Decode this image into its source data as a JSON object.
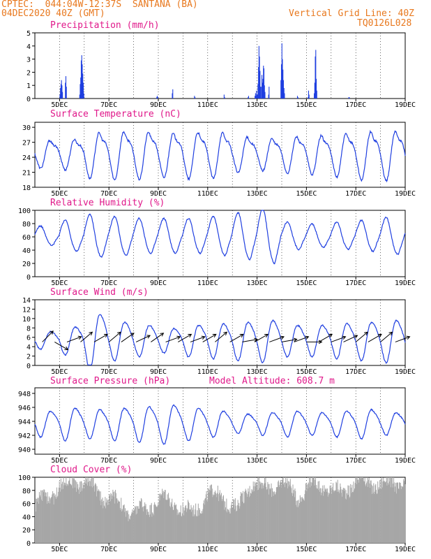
{
  "header": {
    "line1_left": "CPTEC:  044:04W-12:37S  SANTANA (BA)",
    "line2_left": "04DEC2020 40Z (GMT)",
    "line2_right": "Vertical Grid Line: 40Z",
    "line3_right": "TQ0126L028"
  },
  "colors": {
    "header": "#e8781e",
    "title": "#e0188a",
    "line": "#1f3fe0",
    "bar": "#1f3fe0",
    "cloud": "#a6a6a6",
    "arrow": "#000000"
  },
  "x_tick_labels": [
    "5DEC",
    "7DEC",
    "9DEC",
    "11DEC",
    "13DEC",
    "15DEC",
    "17DEC",
    "19DEC"
  ],
  "chart_data": [
    {
      "type": "bar",
      "title": "Precipitation (mm/h)",
      "ylim": [
        0,
        5
      ],
      "yticks": [
        0,
        1,
        2,
        3,
        4,
        5
      ],
      "x_domain": [
        0,
        15
      ],
      "pulses": [
        {
          "x": 1.0,
          "values": [
            0.3,
            0.8,
            1.1,
            1.4,
            1.0,
            0.5
          ]
        },
        {
          "x": 1.22,
          "values": [
            1.2,
            1.7,
            0.9
          ]
        },
        {
          "x": 1.8,
          "values": [
            0.3,
            1.1,
            1.6,
            2.9,
            3.3,
            2.6,
            1.9,
            1.2,
            0.4
          ]
        },
        {
          "x": 4.92,
          "values": [
            0.1,
            0.2,
            0.1
          ]
        },
        {
          "x": 5.55,
          "values": [
            0.4,
            0.7
          ]
        },
        {
          "x": 6.45,
          "values": [
            0.2,
            0.1
          ]
        },
        {
          "x": 7.65,
          "values": [
            0.3,
            0.1
          ]
        },
        {
          "x": 8.62,
          "values": [
            0.1,
            0.2
          ]
        },
        {
          "x": 8.9,
          "values": [
            0.2,
            0.4,
            0.2
          ]
        },
        {
          "x": 8.96,
          "values": [
            0.6,
            0.3
          ]
        },
        {
          "x": 9.0,
          "values": [
            0.3,
            1.1,
            2.4,
            4.0,
            3.2,
            2.1,
            0.9
          ]
        },
        {
          "x": 9.16,
          "values": [
            0.9,
            1.8,
            1.2,
            1.5,
            2.5,
            2.3,
            1.0,
            0.5
          ]
        },
        {
          "x": 9.45,
          "values": [
            0.3,
            0.9
          ]
        },
        {
          "x": 9.95,
          "values": [
            1.4,
            2.6,
            4.2,
            3.0,
            2.2,
            1.4,
            0.8,
            0.4
          ]
        },
        {
          "x": 10.62,
          "values": [
            0.2,
            0.1
          ]
        },
        {
          "x": 11.05,
          "values": [
            0.1,
            0.6,
            0.3
          ]
        },
        {
          "x": 11.3,
          "values": [
            0.4,
            1.2,
            3.2,
            3.7,
            1.5,
            0.6
          ]
        },
        {
          "x": 12.7,
          "values": [
            0.1,
            0.1
          ]
        }
      ]
    },
    {
      "type": "line",
      "title": "Surface Temperature (nC)",
      "ylim": [
        18,
        31
      ],
      "yticks": [
        18,
        21,
        24,
        27,
        30
      ],
      "baseline": 25,
      "amp": 5,
      "day_amp": [
        0.55,
        0.6,
        0.9,
        0.95,
        0.93,
        0.87,
        0.92,
        0.9,
        0.7,
        0.63,
        0.72,
        0.77,
        0.85,
        0.95,
        0.98,
        0.98
      ],
      "secondary": 0.6
    },
    {
      "type": "line",
      "title": "Relative Humidity (%)",
      "ylim": [
        0,
        100
      ],
      "yticks": [
        0,
        20,
        40,
        60,
        80,
        100
      ],
      "baseline": 62,
      "amp": -26,
      "day_amp": [
        0.5,
        0.8,
        1.1,
        1.0,
        0.9,
        0.9,
        0.9,
        1.0,
        1.2,
        1.4,
        0.7,
        0.6,
        0.7,
        0.8,
        0.95,
        0.9
      ],
      "secondary": 0.4
    },
    {
      "type": "line",
      "title": "Surface Wind (m/s)",
      "ylim": [
        0,
        14
      ],
      "yticks": [
        0,
        2,
        4,
        6,
        8,
        10,
        12,
        14
      ],
      "baseline": 5.5,
      "amp": 3.6,
      "day_amp": [
        0.5,
        0.8,
        1.6,
        1.1,
        0.9,
        0.7,
        0.9,
        1.0,
        1.1,
        1.2,
        0.9,
        0.9,
        1.0,
        1.1,
        1.2,
        1.3
      ],
      "secondary": 0.5,
      "arrows": [
        [
          0.3,
          225
        ],
        [
          0.8,
          300
        ],
        [
          1.3,
          250
        ],
        [
          1.85,
          230
        ],
        [
          2.4,
          240
        ],
        [
          3.0,
          230
        ],
        [
          3.5,
          235
        ],
        [
          4.1,
          245
        ],
        [
          4.7,
          235
        ],
        [
          5.3,
          250
        ],
        [
          5.8,
          240
        ],
        [
          6.3,
          250
        ],
        [
          6.8,
          240
        ],
        [
          7.3,
          230
        ],
        [
          7.9,
          240
        ],
        [
          8.4,
          260
        ],
        [
          8.9,
          240
        ],
        [
          9.5,
          250
        ],
        [
          10.0,
          260
        ],
        [
          10.5,
          250
        ],
        [
          11.0,
          270
        ],
        [
          11.5,
          240
        ],
        [
          12.0,
          250
        ],
        [
          12.5,
          245
        ],
        [
          13.0,
          230
        ],
        [
          13.5,
          240
        ],
        [
          14.0,
          230
        ],
        [
          14.6,
          250
        ]
      ]
    },
    {
      "type": "line",
      "title": "Surface Pressure (hPa)",
      "subtitle": "Model Altitude: 608.7 m",
      "ylim": [
        939.3,
        948.8
      ],
      "yticks": [
        940,
        942,
        944,
        946,
        948
      ],
      "baseline": 943.8,
      "amp": 2.2,
      "day_amp": [
        0.8,
        1.0,
        0.9,
        1.0,
        1.1,
        1.2,
        1.0,
        0.8,
        0.6,
        0.7,
        0.8,
        0.7,
        0.8,
        0.9,
        0.7,
        0.8
      ],
      "secondary": 0.6
    },
    {
      "type": "bar",
      "title": "Cloud Cover (%)",
      "ylim": [
        0,
        100
      ],
      "yticks": [
        0,
        20,
        40,
        60,
        80,
        100
      ],
      "style": "dense",
      "profile": [
        [
          0,
          55
        ],
        [
          0.5,
          70
        ],
        [
          1.0,
          85
        ],
        [
          1.6,
          95
        ],
        [
          2.2,
          90
        ],
        [
          2.8,
          70
        ],
        [
          3.4,
          60
        ],
        [
          4.0,
          45
        ],
        [
          4.6,
          55
        ],
        [
          5.2,
          70
        ],
        [
          5.8,
          55
        ],
        [
          6.4,
          45
        ],
        [
          7.0,
          75
        ],
        [
          7.6,
          70
        ],
        [
          8.2,
          50
        ],
        [
          8.8,
          95
        ],
        [
          9.4,
          80
        ],
        [
          10.0,
          95
        ],
        [
          10.6,
          70
        ],
        [
          11.2,
          90
        ],
        [
          11.8,
          85
        ],
        [
          12.4,
          75
        ],
        [
          13.0,
          95
        ],
        [
          13.6,
          90
        ],
        [
          14.2,
          90
        ],
        [
          15.0,
          92
        ]
      ]
    }
  ]
}
